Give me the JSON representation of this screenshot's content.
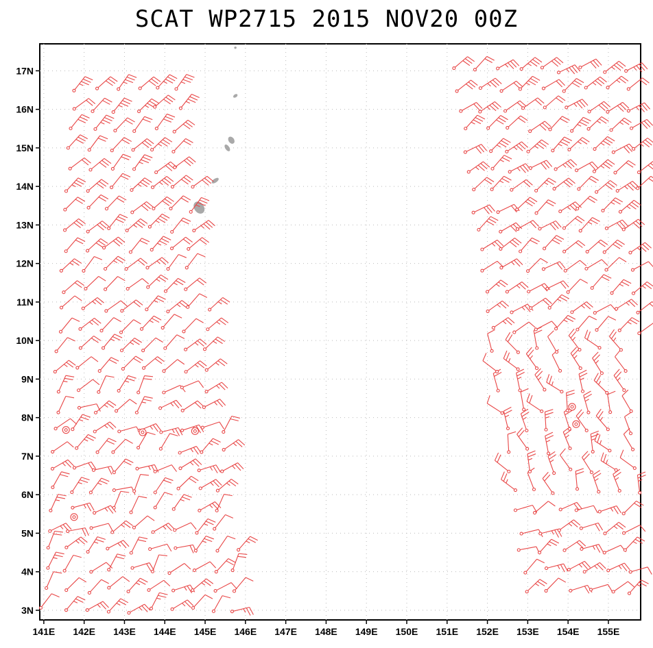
{
  "title": "SCAT WP2715 2015 NOV20 00Z",
  "map": {
    "lon_range": [
      140.9,
      155.8
    ],
    "lat_range": [
      2.75,
      17.7
    ],
    "lon_ticks": [
      {
        "value": 141,
        "label": "141E"
      },
      {
        "value": 142,
        "label": "142E"
      },
      {
        "value": 143,
        "label": "143E"
      },
      {
        "value": 144,
        "label": "144E"
      },
      {
        "value": 145,
        "label": "145E"
      },
      {
        "value": 146,
        "label": "146E"
      },
      {
        "value": 147,
        "label": "147E"
      },
      {
        "value": 148,
        "label": "148E"
      },
      {
        "value": 149,
        "label": "149E"
      },
      {
        "value": 150,
        "label": "150E"
      },
      {
        "value": 151,
        "label": "151E"
      },
      {
        "value": 152,
        "label": "152E"
      },
      {
        "value": 153,
        "label": "153E"
      },
      {
        "value": 154,
        "label": "154E"
      },
      {
        "value": 155,
        "label": "155E"
      }
    ],
    "lat_ticks": [
      {
        "value": 3,
        "label": "3N"
      },
      {
        "value": 4,
        "label": "4N"
      },
      {
        "value": 5,
        "label": "5N"
      },
      {
        "value": 6,
        "label": "6N"
      },
      {
        "value": 7,
        "label": "7N"
      },
      {
        "value": 8,
        "label": "8N"
      },
      {
        "value": 9,
        "label": "9N"
      },
      {
        "value": 10,
        "label": "10N"
      },
      {
        "value": 11,
        "label": "11N"
      },
      {
        "value": 12,
        "label": "12N"
      },
      {
        "value": 13,
        "label": "13N"
      },
      {
        "value": 14,
        "label": "14N"
      },
      {
        "value": 15,
        "label": "15N"
      },
      {
        "value": 16,
        "label": "16N"
      },
      {
        "value": 17,
        "label": "17N"
      }
    ],
    "barb_color": "#e84545",
    "land_color": "#a9a9a9",
    "swaths": [
      {
        "name": "west",
        "lon_min": 141.0,
        "lon_max": 146.0,
        "lat_min": 3.0,
        "lat_max": 17.0,
        "edge_skew": 0.28
      },
      {
        "name": "east",
        "lon_min": 151.2,
        "lon_max": 155.8,
        "lat_min": 3.5,
        "lat_max": 17.2,
        "edge_skew": -0.2
      }
    ],
    "calm_points": [
      {
        "lon": 141.55,
        "lat": 7.68
      },
      {
        "lon": 143.45,
        "lat": 7.62
      },
      {
        "lon": 144.75,
        "lat": 7.65
      },
      {
        "lon": 141.75,
        "lat": 5.42
      },
      {
        "lon": 154.1,
        "lat": 8.28
      },
      {
        "lon": 154.2,
        "lat": 7.83
      }
    ],
    "islands": [
      {
        "lon": 144.85,
        "lat": 13.45,
        "rx": 0.12,
        "ry": 0.17
      },
      {
        "lon": 145.25,
        "lat": 14.15,
        "rx": 0.1,
        "ry": 0.05
      },
      {
        "lon": 145.65,
        "lat": 15.2,
        "rx": 0.07,
        "ry": 0.1
      },
      {
        "lon": 145.55,
        "lat": 15.0,
        "rx": 0.05,
        "ry": 0.1
      },
      {
        "lon": 145.75,
        "lat": 16.35,
        "rx": 0.06,
        "ry": 0.04
      },
      {
        "lon": 145.75,
        "lat": 17.6,
        "rx": 0.03,
        "ry": 0.03
      }
    ]
  }
}
